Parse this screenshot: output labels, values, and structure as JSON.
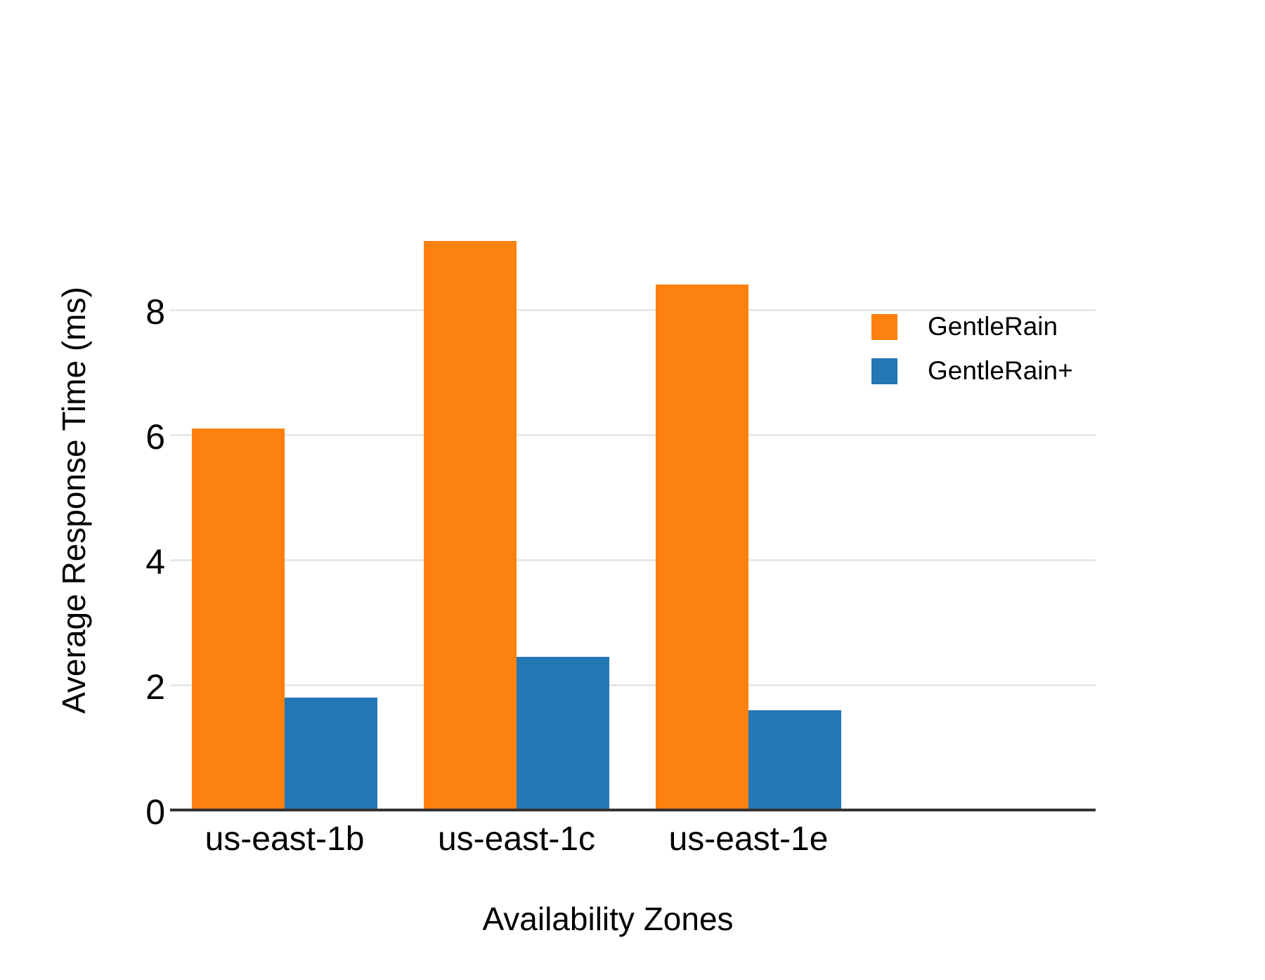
{
  "chart_data": {
    "type": "bar",
    "title": "",
    "categories": [
      "us-east-1b",
      "us-east-1c",
      "us-east-1e"
    ],
    "series": [
      {
        "name": "GentleRain",
        "color": "#fc810e",
        "values": [
          6.1,
          9.1,
          8.4
        ]
      },
      {
        "name": "GentleRain+",
        "color": "#2277b4",
        "values": [
          1.8,
          2.45,
          1.6
        ]
      }
    ],
    "xlabel": "Availability Zones",
    "ylabel": "Average Response Time (ms)",
    "yticks": [
      0,
      2,
      4,
      6,
      8
    ],
    "ylim": [
      0,
      9.6
    ],
    "grid": "horizontal-light",
    "legend_position": "upper-right-inside"
  },
  "colors": {
    "background": "#ffffff",
    "gridline": "#e8e8e8",
    "axis_line": "#333333",
    "text": "#000000"
  }
}
